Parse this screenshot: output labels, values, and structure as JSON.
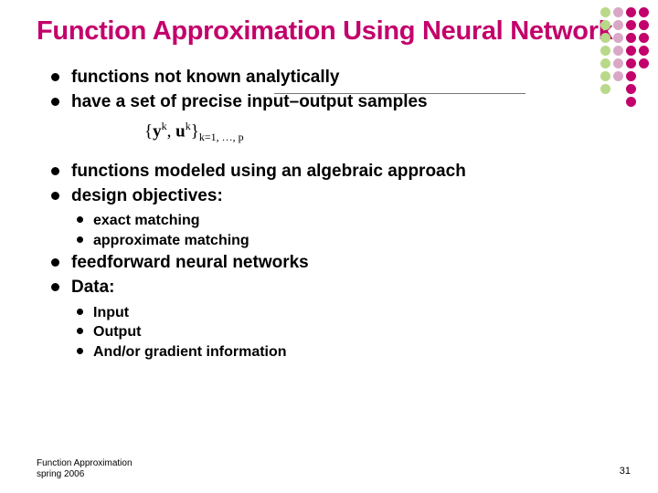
{
  "title": "Function Approximation Using Neural Network",
  "bullets": {
    "b0": "functions not known analytically",
    "b1": "have a set of precise input–output samples",
    "b2": "functions modeled using an algebraic approach",
    "b3": "design objectives:",
    "b3s": {
      "s0": "exact matching",
      "s1": "approximate matching"
    },
    "b4": "feedforward neural networks",
    "b5": "Data:",
    "b5s": {
      "s0": "Input",
      "s1": "Output",
      "s2": "And/or gradient information"
    }
  },
  "formula": {
    "open": "{",
    "y": "y",
    "sup1": "k",
    "comma": ", ",
    "u": "u",
    "sup2": "k",
    "close": "}",
    "sub": "k=1, …, p"
  },
  "footer": {
    "line1": "Function Approximation",
    "line2": "spring 2006"
  },
  "pageNumber": "31",
  "decoration": {
    "dot_size": 11,
    "dot_gap": 3,
    "columns": [
      {
        "color": "#b8d989",
        "count": 7
      },
      {
        "color": "#d9a8c6",
        "count": 6
      },
      {
        "color": "#c3006b",
        "count": 8
      },
      {
        "color": "#c3006b",
        "count": 5
      }
    ]
  },
  "colors": {
    "title": "#c3006b",
    "text": "#000000",
    "divider": "#777777",
    "background": "#ffffff"
  },
  "typography": {
    "title_fontsize": 29,
    "level1_fontsize": 19,
    "level2_fontsize": 16,
    "footer_fontsize": 10,
    "font_family": "Arial"
  }
}
